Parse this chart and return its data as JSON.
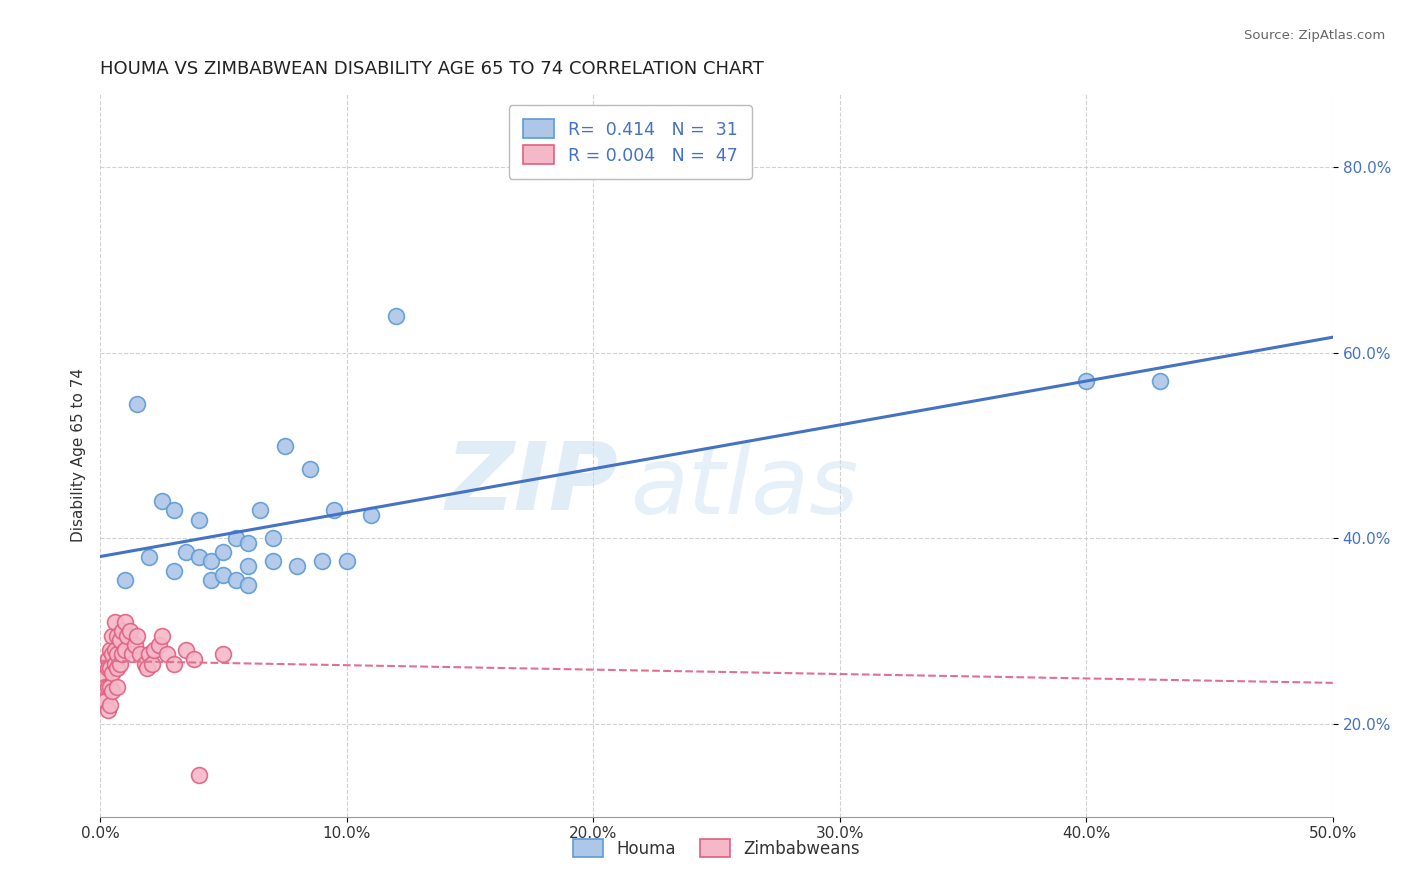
{
  "title": "HOUMA VS ZIMBABWEAN DISABILITY AGE 65 TO 74 CORRELATION CHART",
  "source": "Source: ZipAtlas.com",
  "xlabel": "",
  "ylabel": "Disability Age 65 to 74",
  "xlim": [
    0.0,
    0.5
  ],
  "ylim": [
    0.1,
    0.88
  ],
  "xticks": [
    0.0,
    0.1,
    0.2,
    0.3,
    0.4,
    0.5
  ],
  "xticklabels": [
    "0.0%",
    "10.0%",
    "20.0%",
    "30.0%",
    "40.0%",
    "50.0%"
  ],
  "yticks": [
    0.2,
    0.4,
    0.6,
    0.8
  ],
  "yticklabels": [
    "20.0%",
    "40.0%",
    "60.0%",
    "80.0%"
  ],
  "houma_r": "0.414",
  "houma_n": "31",
  "zimbabwe_r": "0.004",
  "zimbabwe_n": "47",
  "houma_color": "#aec6e8",
  "houma_edge_color": "#5b9bd5",
  "zimbabwe_color": "#f4b8c8",
  "zimbabwe_edge_color": "#e06080",
  "houma_line_color": "#4472c4",
  "zimbabwe_line_color": "#e07090",
  "watermark_zip": "ZIP",
  "watermark_atlas": "atlas",
  "background_color": "#ffffff",
  "grid_color": "#cccccc",
  "houma_x": [
    0.01,
    0.015,
    0.02,
    0.025,
    0.03,
    0.03,
    0.035,
    0.04,
    0.04,
    0.045,
    0.045,
    0.05,
    0.05,
    0.055,
    0.055,
    0.06,
    0.06,
    0.06,
    0.065,
    0.07,
    0.07,
    0.075,
    0.08,
    0.085,
    0.09,
    0.095,
    0.1,
    0.11,
    0.12,
    0.4,
    0.43
  ],
  "houma_y": [
    0.355,
    0.545,
    0.38,
    0.44,
    0.365,
    0.43,
    0.385,
    0.38,
    0.42,
    0.375,
    0.355,
    0.385,
    0.36,
    0.355,
    0.4,
    0.395,
    0.37,
    0.35,
    0.43,
    0.4,
    0.375,
    0.5,
    0.37,
    0.475,
    0.375,
    0.43,
    0.375,
    0.425,
    0.64,
    0.57,
    0.57
  ],
  "zimbabwe_x": [
    0.002,
    0.002,
    0.002,
    0.003,
    0.003,
    0.003,
    0.003,
    0.004,
    0.004,
    0.004,
    0.004,
    0.005,
    0.005,
    0.005,
    0.005,
    0.006,
    0.006,
    0.006,
    0.007,
    0.007,
    0.007,
    0.007,
    0.008,
    0.008,
    0.009,
    0.009,
    0.01,
    0.01,
    0.011,
    0.012,
    0.013,
    0.014,
    0.015,
    0.016,
    0.018,
    0.019,
    0.02,
    0.021,
    0.022,
    0.024,
    0.025,
    0.027,
    0.03,
    0.035,
    0.038,
    0.04,
    0.05
  ],
  "zimbabwe_y": [
    0.25,
    0.24,
    0.225,
    0.27,
    0.26,
    0.24,
    0.215,
    0.28,
    0.26,
    0.24,
    0.22,
    0.295,
    0.275,
    0.255,
    0.235,
    0.31,
    0.28,
    0.265,
    0.295,
    0.275,
    0.26,
    0.24,
    0.29,
    0.265,
    0.3,
    0.275,
    0.31,
    0.28,
    0.295,
    0.3,
    0.275,
    0.285,
    0.295,
    0.275,
    0.265,
    0.26,
    0.275,
    0.265,
    0.28,
    0.285,
    0.295,
    0.275,
    0.265,
    0.28,
    0.27,
    0.145,
    0.275
  ]
}
